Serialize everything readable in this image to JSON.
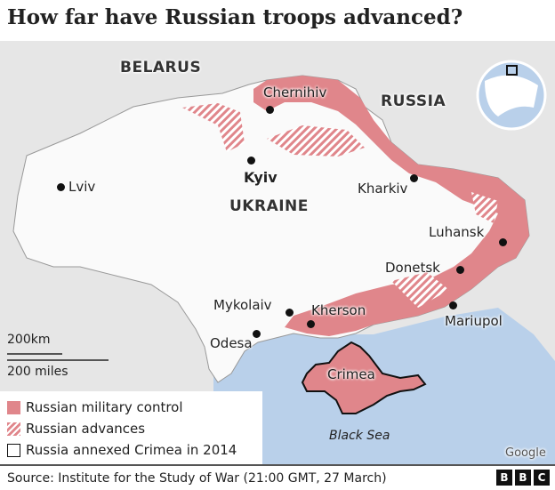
{
  "title": "How far have Russian troops advanced?",
  "countries": {
    "belarus": "BELARUS",
    "russia": "RUSSIA",
    "ukraine": "UKRAINE"
  },
  "cities": {
    "chernihiv": "Chernihiv",
    "kyiv": "Kyiv",
    "lviv": "Lviv",
    "kharkiv": "Kharkiv",
    "luhansk": "Luhansk",
    "donetsk": "Donetsk",
    "mariupol": "Mariupol",
    "mykolaiv": "Mykolaiv",
    "kherson": "Kherson",
    "odesa": "Odesa"
  },
  "regions": {
    "crimea": "Crimea",
    "black_sea": "Black Sea"
  },
  "scale": {
    "km": "200km",
    "miles": "200 miles"
  },
  "legend": {
    "control": "Russian military control",
    "advances": "Russian advances",
    "annexed": "Russia annexed Crimea in 2014"
  },
  "attribution": "Google",
  "source": "Source: Institute for the Study of War (21:00 GMT, 27 March)",
  "logo": [
    "B",
    "B",
    "C"
  ],
  "colors": {
    "control": "#e0868b",
    "sea": "#b9d0ea",
    "land": "#e6e6e6",
    "ukraine": "#fafafa"
  }
}
